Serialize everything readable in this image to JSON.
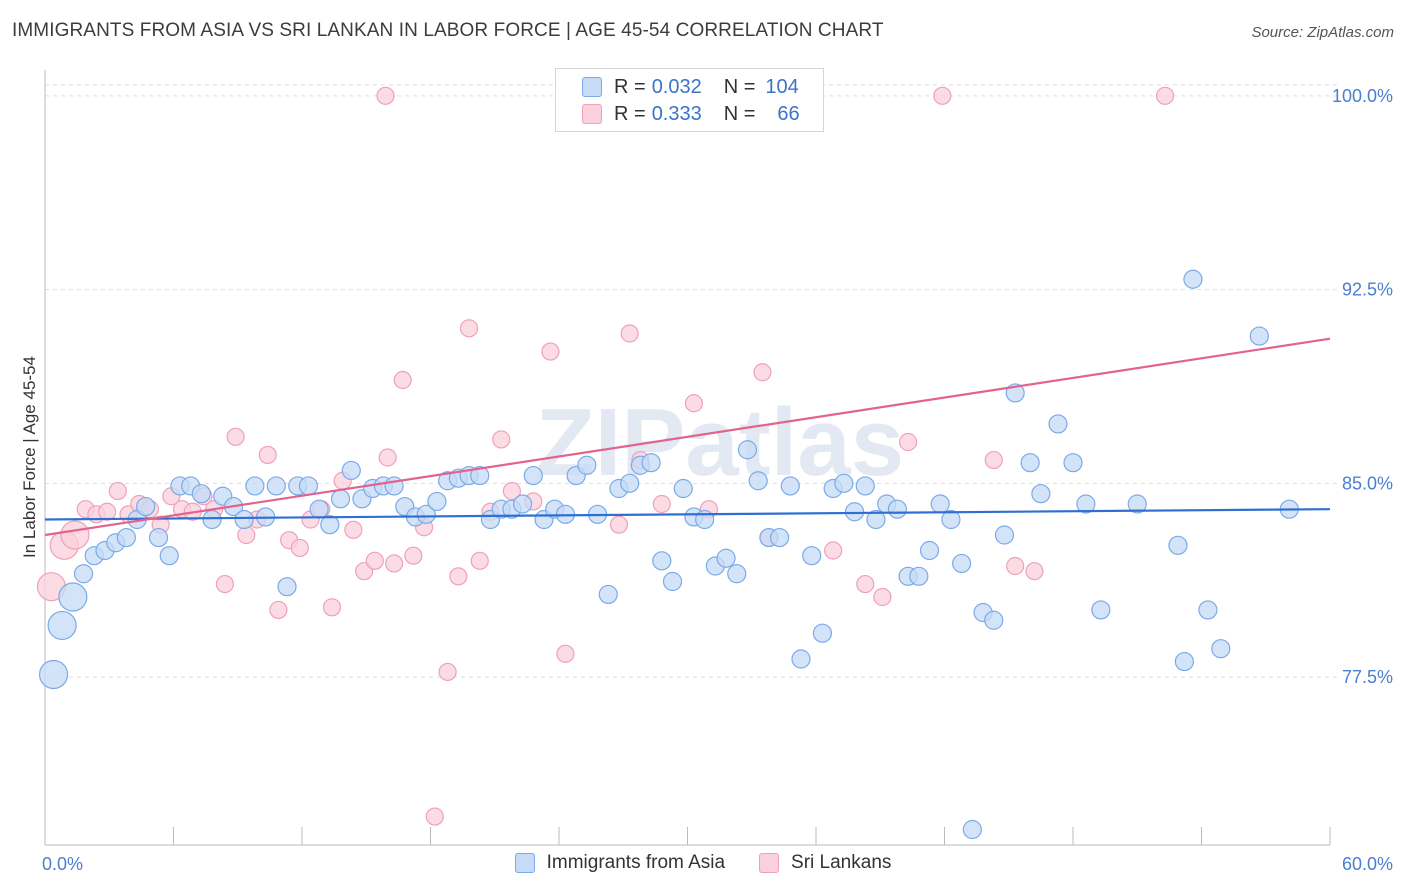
{
  "title": "IMMIGRANTS FROM ASIA VS SRI LANKAN IN LABOR FORCE | AGE 45-54 CORRELATION CHART",
  "source": "Source: ZipAtlas.com",
  "watermark": "ZIPatlas",
  "colors": {
    "blue": "#7aaae8",
    "blue_fill": "#c5dbf6",
    "blue_line": "#2e6fd0",
    "pink": "#f0a0b8",
    "pink_fill": "#fad0dc",
    "pink_line": "#e2638e",
    "tick_text": "#4a7fd0"
  },
  "legend": {
    "rows": [
      {
        "r_label": "R =",
        "r_value": "0.032",
        "n_label": "N =",
        "n_value": "104"
      },
      {
        "r_label": "R =",
        "r_value": "0.333",
        "n_label": "N =",
        "n_value": "66"
      }
    ],
    "bottom": [
      "Immigrants from Asia",
      "Sri Lankans"
    ]
  },
  "chart_data": {
    "type": "scatter",
    "title": "IMMIGRANTS FROM ASIA VS SRI LANKAN IN LABOR FORCE | AGE 45-54 CORRELATION CHART",
    "xlabel": "",
    "ylabel": "In Labor Force | Age 45-54",
    "xlim": [
      0,
      60
    ],
    "ylim": [
      71,
      101
    ],
    "x_tick_labels": [
      "0.0%",
      "60.0%"
    ],
    "y_ticks": [
      77.5,
      85.0,
      92.5,
      100.0
    ],
    "y_tick_labels": [
      "77.5%",
      "85.0%",
      "92.5%",
      "100.0%"
    ],
    "grid": true,
    "series": [
      {
        "name": "Immigrants from Asia",
        "trend": {
          "x": [
            0,
            60
          ],
          "y": [
            83.6,
            84.0
          ]
        },
        "points": [
          [
            0.4,
            77.6
          ],
          [
            0.8,
            79.5
          ],
          [
            1.3,
            80.6
          ],
          [
            1.8,
            81.5
          ],
          [
            2.3,
            82.2
          ],
          [
            2.8,
            82.4
          ],
          [
            3.3,
            82.7
          ],
          [
            3.8,
            82.9
          ],
          [
            4.3,
            83.6
          ],
          [
            4.7,
            84.1
          ],
          [
            5.3,
            82.9
          ],
          [
            5.8,
            82.2
          ],
          [
            6.3,
            84.9
          ],
          [
            6.8,
            84.9
          ],
          [
            7.3,
            84.6
          ],
          [
            7.8,
            83.6
          ],
          [
            8.3,
            84.5
          ],
          [
            8.8,
            84.1
          ],
          [
            9.3,
            83.6
          ],
          [
            9.8,
            84.9
          ],
          [
            10.3,
            83.7
          ],
          [
            10.8,
            84.9
          ],
          [
            11.3,
            81.0
          ],
          [
            11.8,
            84.9
          ],
          [
            12.3,
            84.9
          ],
          [
            12.8,
            84.0
          ],
          [
            13.3,
            83.4
          ],
          [
            13.8,
            84.4
          ],
          [
            14.3,
            85.5
          ],
          [
            14.8,
            84.4
          ],
          [
            15.3,
            84.8
          ],
          [
            15.8,
            84.9
          ],
          [
            16.3,
            84.9
          ],
          [
            16.8,
            84.1
          ],
          [
            17.3,
            83.7
          ],
          [
            17.8,
            83.8
          ],
          [
            18.3,
            84.3
          ],
          [
            18.8,
            85.1
          ],
          [
            19.3,
            85.2
          ],
          [
            19.8,
            85.3
          ],
          [
            20.3,
            85.3
          ],
          [
            20.8,
            83.6
          ],
          [
            21.3,
            84.0
          ],
          [
            21.8,
            84.0
          ],
          [
            22.3,
            84.2
          ],
          [
            22.8,
            85.3
          ],
          [
            23.3,
            83.6
          ],
          [
            23.8,
            84.0
          ],
          [
            24.3,
            83.8
          ],
          [
            24.8,
            85.3
          ],
          [
            25.3,
            85.7
          ],
          [
            25.8,
            83.8
          ],
          [
            26.3,
            80.7
          ],
          [
            26.8,
            84.8
          ],
          [
            27.3,
            85.0
          ],
          [
            27.8,
            85.7
          ],
          [
            28.3,
            85.8
          ],
          [
            28.8,
            82.0
          ],
          [
            29.3,
            81.2
          ],
          [
            29.8,
            84.8
          ],
          [
            30.3,
            83.7
          ],
          [
            30.8,
            83.6
          ],
          [
            31.3,
            81.8
          ],
          [
            31.8,
            82.1
          ],
          [
            32.3,
            81.5
          ],
          [
            32.8,
            86.3
          ],
          [
            33.3,
            85.1
          ],
          [
            33.8,
            82.9
          ],
          [
            34.3,
            82.9
          ],
          [
            34.8,
            84.9
          ],
          [
            35.3,
            78.2
          ],
          [
            35.8,
            82.2
          ],
          [
            36.3,
            79.2
          ],
          [
            36.8,
            84.8
          ],
          [
            37.3,
            85.0
          ],
          [
            37.8,
            83.9
          ],
          [
            38.3,
            84.9
          ],
          [
            38.8,
            83.6
          ],
          [
            39.3,
            84.2
          ],
          [
            39.8,
            84.0
          ],
          [
            40.3,
            81.4
          ],
          [
            40.8,
            81.4
          ],
          [
            41.3,
            82.4
          ],
          [
            41.8,
            84.2
          ],
          [
            42.3,
            83.6
          ],
          [
            42.8,
            81.9
          ],
          [
            43.8,
            80.0
          ],
          [
            44.3,
            79.7
          ],
          [
            44.8,
            83.0
          ],
          [
            45.3,
            88.5
          ],
          [
            46.0,
            85.8
          ],
          [
            46.5,
            84.6
          ],
          [
            47.3,
            87.3
          ],
          [
            48.0,
            85.8
          ],
          [
            48.6,
            84.2
          ],
          [
            49.3,
            80.1
          ],
          [
            51.0,
            84.2
          ],
          [
            52.9,
            82.6
          ],
          [
            53.6,
            92.9
          ],
          [
            53.2,
            78.1
          ],
          [
            54.3,
            80.1
          ],
          [
            54.9,
            78.6
          ],
          [
            56.7,
            90.7
          ],
          [
            58.1,
            84.0
          ],
          [
            43.3,
            71.6
          ]
        ]
      },
      {
        "name": "Sri Lankans",
        "trend": {
          "x": [
            0,
            60
          ],
          "y": [
            83.0,
            90.6
          ]
        },
        "points": [
          [
            0.3,
            81.0
          ],
          [
            0.9,
            82.6
          ],
          [
            1.4,
            83.0
          ],
          [
            1.9,
            84.0
          ],
          [
            2.4,
            83.8
          ],
          [
            2.9,
            83.9
          ],
          [
            3.4,
            84.7
          ],
          [
            3.9,
            83.8
          ],
          [
            4.4,
            84.2
          ],
          [
            4.9,
            84.0
          ],
          [
            5.4,
            83.4
          ],
          [
            5.9,
            84.5
          ],
          [
            6.4,
            84.0
          ],
          [
            6.9,
            83.9
          ],
          [
            7.4,
            84.5
          ],
          [
            7.9,
            84.0
          ],
          [
            8.4,
            81.1
          ],
          [
            8.9,
            86.8
          ],
          [
            9.4,
            83.0
          ],
          [
            9.9,
            83.6
          ],
          [
            10.4,
            86.1
          ],
          [
            10.9,
            80.1
          ],
          [
            11.4,
            82.8
          ],
          [
            11.9,
            82.5
          ],
          [
            12.4,
            83.6
          ],
          [
            12.9,
            84.0
          ],
          [
            13.4,
            80.2
          ],
          [
            13.9,
            85.1
          ],
          [
            14.4,
            83.2
          ],
          [
            14.9,
            81.6
          ],
          [
            15.4,
            82.0
          ],
          [
            15.9,
            100.0
          ],
          [
            16.3,
            81.9
          ],
          [
            16.7,
            89.0
          ],
          [
            17.2,
            82.2
          ],
          [
            17.7,
            83.3
          ],
          [
            18.2,
            72.1
          ],
          [
            18.8,
            77.7
          ],
          [
            19.3,
            81.4
          ],
          [
            19.8,
            91.0
          ],
          [
            20.3,
            82.0
          ],
          [
            20.8,
            83.9
          ],
          [
            21.3,
            86.7
          ],
          [
            21.8,
            84.7
          ],
          [
            22.8,
            84.3
          ],
          [
            23.6,
            90.1
          ],
          [
            24.3,
            78.4
          ],
          [
            25.3,
            100.0
          ],
          [
            26.8,
            83.4
          ],
          [
            27.3,
            90.8
          ],
          [
            27.8,
            85.9
          ],
          [
            28.8,
            84.2
          ],
          [
            30.3,
            88.1
          ],
          [
            33.5,
            89.3
          ],
          [
            33.8,
            82.9
          ],
          [
            36.8,
            82.4
          ],
          [
            38.3,
            81.1
          ],
          [
            39.1,
            80.6
          ],
          [
            40.3,
            86.6
          ],
          [
            41.9,
            100.0
          ],
          [
            44.3,
            85.9
          ],
          [
            45.3,
            81.8
          ],
          [
            46.2,
            81.6
          ],
          [
            52.3,
            100.0
          ],
          [
            16.0,
            86.0
          ],
          [
            31.0,
            84.0
          ]
        ]
      }
    ]
  }
}
